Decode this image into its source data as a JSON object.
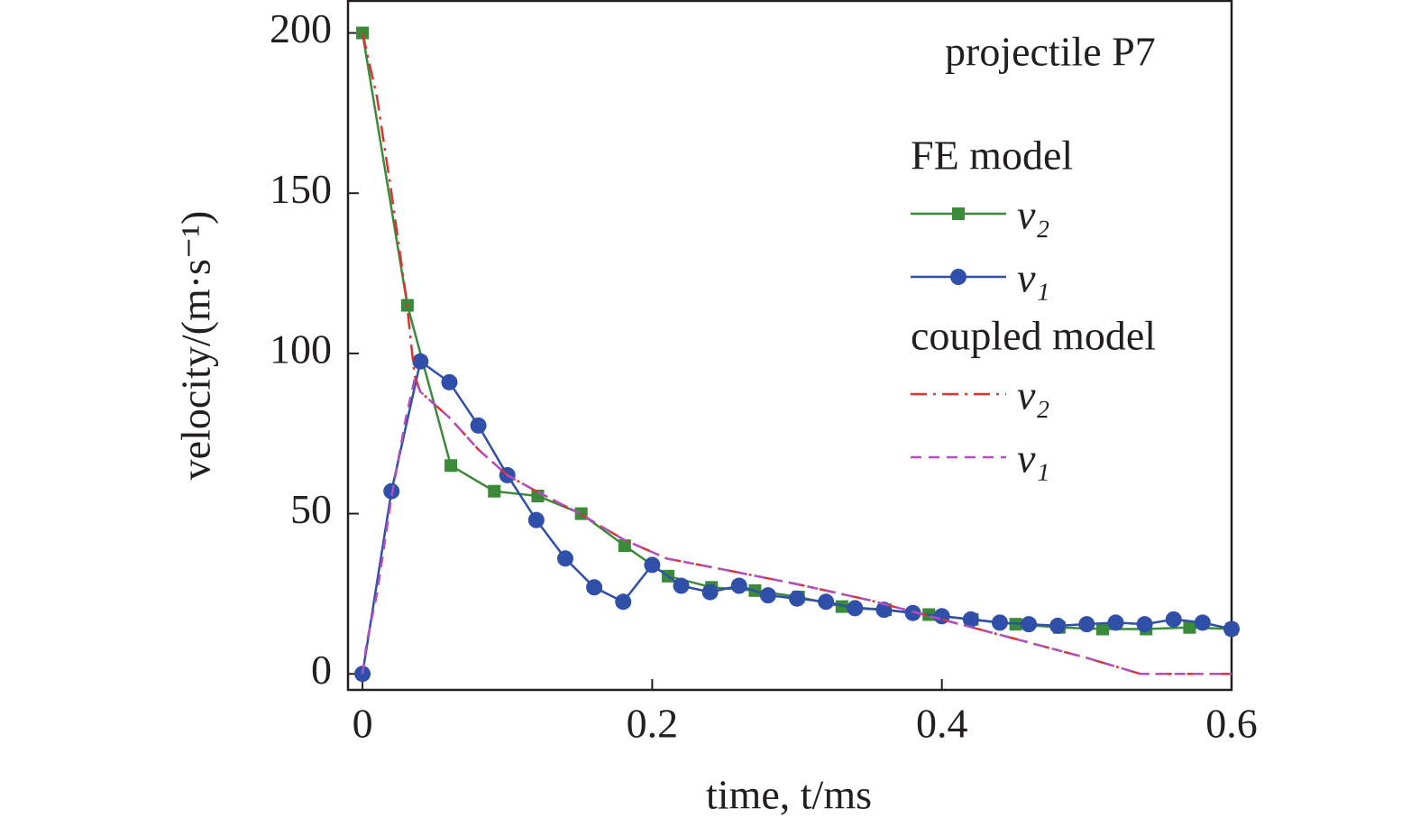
{
  "chart_data": {
    "type": "line",
    "annotation": "projectile P7",
    "x_label": "time, t/ms",
    "y_label": "velocity/(m·s⁻¹)",
    "xlim": [
      -0.01,
      0.6
    ],
    "ylim": [
      -5,
      210
    ],
    "xticks": [
      0,
      0.2,
      0.4,
      0.6
    ],
    "yticks": [
      0,
      50,
      100,
      150,
      200
    ],
    "series": [
      {
        "group": "FE model",
        "name": "v₂",
        "color": "#3a8a3a",
        "style": "solid",
        "marker": "square",
        "x": [
          0,
          0.031,
          0.061,
          0.091,
          0.121,
          0.151,
          0.181,
          0.211,
          0.241,
          0.271,
          0.301,
          0.331,
          0.361,
          0.391,
          0.421,
          0.451,
          0.481,
          0.511,
          0.541,
          0.571,
          0.6
        ],
        "values": [
          200,
          115,
          65,
          57,
          55.5,
          50,
          40,
          30.5,
          27,
          26,
          24,
          21,
          20,
          18.5,
          17,
          15.5,
          14.5,
          14,
          14,
          14.5,
          14
        ]
      },
      {
        "group": "FE model",
        "name": "v₁",
        "color": "#2f4fa8",
        "style": "solid",
        "marker": "circle",
        "x": [
          0,
          0.02,
          0.04,
          0.06,
          0.08,
          0.1,
          0.12,
          0.14,
          0.16,
          0.18,
          0.2,
          0.22,
          0.24,
          0.26,
          0.28,
          0.3,
          0.32,
          0.34,
          0.36,
          0.38,
          0.4,
          0.42,
          0.44,
          0.46,
          0.48,
          0.5,
          0.52,
          0.54,
          0.56,
          0.58,
          0.6
        ],
        "values": [
          0,
          57,
          97.5,
          91,
          77.5,
          62,
          48,
          36,
          27,
          22.5,
          34,
          27.5,
          25.5,
          27.5,
          24.5,
          23.5,
          22.5,
          20.5,
          20,
          19,
          18,
          17,
          16,
          15.5,
          15,
          15.5,
          16,
          15.5,
          17,
          16,
          14
        ]
      },
      {
        "group": "coupled model",
        "name": "v₂",
        "color": "#e03030",
        "style": "dash-dot",
        "marker": null,
        "x": [
          0,
          0.01,
          0.02,
          0.03,
          0.036,
          0.04,
          0.06,
          0.08,
          0.1,
          0.12,
          0.15,
          0.18,
          0.21,
          0.25,
          0.3,
          0.35,
          0.4,
          0.45,
          0.5,
          0.537,
          0.6
        ],
        "values": [
          200,
          180,
          150,
          118,
          93,
          88,
          80,
          70,
          62,
          57,
          50,
          42,
          36,
          32.5,
          28,
          23,
          17,
          11,
          5,
          0,
          0
        ]
      },
      {
        "group": "coupled model",
        "name": "v₁",
        "color": "#b050c0",
        "style": "dashed",
        "marker": null,
        "x": [
          0,
          0.003,
          0.01,
          0.02,
          0.03,
          0.036,
          0.04,
          0.06,
          0.08,
          0.1,
          0.12,
          0.15,
          0.18,
          0.21,
          0.25,
          0.3,
          0.35,
          0.4,
          0.45,
          0.5,
          0.537,
          0.6
        ],
        "values": [
          0,
          10,
          25,
          55,
          80,
          92,
          88,
          80,
          70,
          62,
          57,
          50,
          42,
          36,
          32.5,
          28,
          23,
          17,
          11,
          5,
          0,
          0
        ]
      }
    ]
  }
}
